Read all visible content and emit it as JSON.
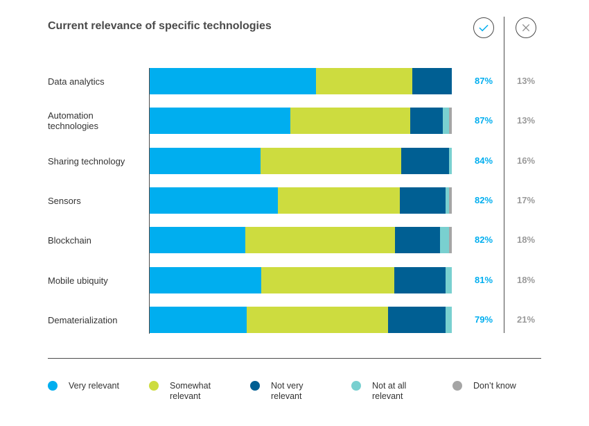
{
  "title": "Current relevance of specific technologies",
  "icons": {
    "relevant": "check-icon",
    "not_relevant": "cross-icon"
  },
  "colors": {
    "very_relevant": "#00aeef",
    "somewhat_relevant": "#cddc3f",
    "not_very_relevant": "#005f93",
    "not_at_all_relevant": "#79d0d0",
    "dont_know": "#a5a5a5"
  },
  "chart_data": {
    "type": "bar",
    "orientation": "horizontal",
    "stacked": true,
    "title": "Current relevance of specific technologies",
    "xlim": [
      0,
      100
    ],
    "categories": [
      "Data analytics",
      "Automation technologies",
      "Sharing technology",
      "Sensors",
      "Blockchain",
      "Mobile ubiquity",
      "Dematerialization"
    ],
    "series": [
      {
        "name": "Very relevant",
        "color": "#00aeef",
        "values": [
          55,
          47,
          37,
          42,
          32,
          37,
          32
        ]
      },
      {
        "name": "Somewhat relevant",
        "color": "#cddc3f",
        "values": [
          32,
          40,
          47,
          40,
          50,
          44,
          47
        ]
      },
      {
        "name": "Not very relevant",
        "color": "#005f93",
        "values": [
          13,
          11,
          16,
          15,
          15,
          17,
          19
        ]
      },
      {
        "name": "Not at all relevant",
        "color": "#79d0d0",
        "values": [
          0,
          2,
          1,
          1,
          3,
          2,
          2
        ]
      },
      {
        "name": "Don’t know",
        "color": "#a5a5a5",
        "values": [
          0,
          1,
          0,
          1,
          1,
          0,
          0
        ]
      }
    ],
    "relevant_pct": [
      "87%",
      "87%",
      "84%",
      "82%",
      "82%",
      "81%",
      "79%"
    ],
    "not_relevant_pct": [
      "13%",
      "13%",
      "16%",
      "17%",
      "18%",
      "18%",
      "21%"
    ],
    "legend": [
      "Very relevant",
      "Somewhat relevant",
      "Not very relevant",
      "Not at all relevant",
      "Don’t know"
    ],
    "legend_position": "bottom"
  }
}
